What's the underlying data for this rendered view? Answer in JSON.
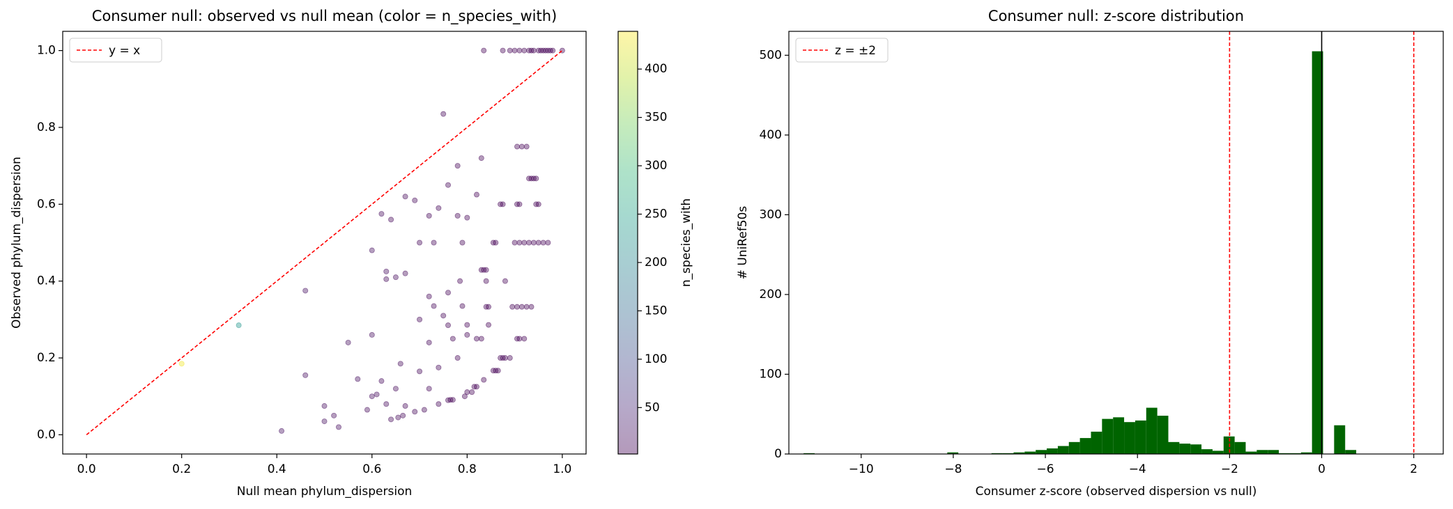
{
  "chart_data": [
    {
      "type": "scatter",
      "title": "Consumer null: observed vs null mean (color = n_species_with)",
      "x_label": "Null mean phylum_dispersion",
      "y_label": "Observed phylum_dispersion",
      "xlim": [
        -0.05,
        1.05
      ],
      "ylim": [
        -0.05,
        1.05
      ],
      "xticks": [
        {
          "value": 0,
          "label": "0.0"
        },
        0.2,
        0.4,
        0.6,
        0.8,
        {
          "value": 1,
          "label": "1.0"
        }
      ],
      "yticks": [
        {
          "value": 0,
          "label": "0.0"
        },
        0.2,
        0.4,
        0.6,
        0.8,
        {
          "value": 1,
          "label": "1.0"
        }
      ],
      "x": [
        0.835,
        0.875,
        0.89,
        0.9,
        0.91,
        0.92,
        0.93,
        0.935,
        0.94,
        0.95,
        0.955,
        0.96,
        0.965,
        0.97,
        0.975,
        0.98,
        1.0,
        0.905,
        0.915,
        0.925,
        0.93,
        0.935,
        0.94,
        0.945,
        0.82,
        0.87,
        0.875,
        0.905,
        0.91,
        0.945,
        0.95,
        0.855,
        0.86,
        0.9,
        0.91,
        0.92,
        0.93,
        0.94,
        0.95,
        0.96,
        0.97,
        0.83,
        0.835,
        0.84,
        0.785,
        0.84,
        0.88,
        0.84,
        0.845,
        0.895,
        0.905,
        0.915,
        0.925,
        0.935,
        0.8,
        0.845,
        0.82,
        0.83,
        0.905,
        0.91,
        0.92,
        0.87,
        0.875,
        0.88,
        0.89,
        0.855,
        0.86,
        0.865,
        0.835,
        0.815,
        0.82,
        0.8,
        0.81,
        0.795,
        0.765,
        0.77,
        0.75,
        0.78,
        0.83,
        0.76,
        0.67,
        0.69,
        0.72,
        0.74,
        0.78,
        0.8,
        0.62,
        0.64,
        0.7,
        0.73,
        0.79,
        0.6,
        0.63,
        0.63,
        0.65,
        0.67,
        0.46,
        0.72,
        0.73,
        0.76,
        0.79,
        0.7,
        0.75,
        0.76,
        0.6,
        0.55,
        0.72,
        0.77,
        0.8,
        0.78,
        0.66,
        0.74,
        0.7,
        0.57,
        0.62,
        0.65,
        0.72,
        0.46,
        0.6,
        0.61,
        0.59,
        0.63,
        0.67,
        0.71,
        0.74,
        0.76,
        0.5,
        0.52,
        0.5,
        0.53,
        0.41,
        0.64,
        0.655,
        0.665,
        0.69,
        0.2,
        0.32
      ],
      "y": [
        1,
        1,
        1,
        1,
        1,
        1,
        1,
        1,
        1,
        1,
        1,
        1,
        1,
        1,
        1,
        1,
        1,
        0.75,
        0.75,
        0.75,
        0.667,
        0.667,
        0.667,
        0.667,
        0.625,
        0.6,
        0.6,
        0.6,
        0.6,
        0.6,
        0.6,
        0.5,
        0.5,
        0.5,
        0.5,
        0.5,
        0.5,
        0.5,
        0.5,
        0.5,
        0.5,
        0.429,
        0.429,
        0.429,
        0.4,
        0.4,
        0.4,
        0.333,
        0.333,
        0.333,
        0.333,
        0.333,
        0.333,
        0.333,
        0.286,
        0.286,
        0.25,
        0.25,
        0.25,
        0.25,
        0.25,
        0.2,
        0.2,
        0.2,
        0.2,
        0.167,
        0.167,
        0.167,
        0.143,
        0.125,
        0.125,
        0.111,
        0.111,
        0.1,
        0.091,
        0.091,
        0.835,
        0.7,
        0.72,
        0.65,
        0.62,
        0.61,
        0.57,
        0.59,
        0.57,
        0.565,
        0.575,
        0.56,
        0.5,
        0.5,
        0.5,
        0.48,
        0.425,
        0.405,
        0.41,
        0.42,
        0.375,
        0.36,
        0.335,
        0.37,
        0.335,
        0.3,
        0.31,
        0.285,
        0.26,
        0.24,
        0.24,
        0.25,
        0.26,
        0.2,
        0.185,
        0.175,
        0.165,
        0.145,
        0.14,
        0.12,
        0.12,
        0.155,
        0.1,
        0.105,
        0.065,
        0.08,
        0.075,
        0.065,
        0.08,
        0.09,
        0.075,
        0.05,
        0.035,
        0.02,
        0.01,
        0.04,
        0.045,
        0.05,
        0.06,
        0.185,
        0.285
      ],
      "c": [
        2,
        2,
        2,
        2,
        2,
        2,
        2,
        2,
        2,
        2,
        2,
        2,
        2,
        2,
        2,
        2,
        2,
        2,
        2,
        2,
        2,
        2,
        2,
        2,
        2,
        2,
        2,
        2,
        2,
        2,
        2,
        2,
        2,
        2,
        2,
        2,
        2,
        2,
        2,
        2,
        2,
        2,
        2,
        2,
        2,
        2,
        2,
        2,
        2,
        2,
        2,
        2,
        2,
        2,
        2,
        2,
        2,
        2,
        2,
        2,
        2,
        2,
        2,
        2,
        2,
        2,
        2,
        2,
        2,
        2,
        2,
        2,
        2,
        2,
        2,
        2,
        8,
        4,
        4,
        6,
        12,
        10,
        6,
        8,
        4,
        4,
        14,
        10,
        6,
        6,
        4,
        18,
        16,
        12,
        14,
        12,
        20,
        6,
        6,
        4,
        4,
        8,
        6,
        4,
        16,
        18,
        6,
        4,
        4,
        4,
        12,
        6,
        8,
        16,
        14,
        12,
        6,
        18,
        16,
        14,
        12,
        14,
        10,
        8,
        6,
        4,
        16,
        14,
        18,
        16,
        20,
        12,
        12,
        10,
        8,
        430,
        230
      ],
      "color_label": "n_species_with",
      "colormap": "viridis",
      "clim": [
        2,
        439
      ],
      "cticks": [
        50,
        100,
        150,
        200,
        250,
        300,
        350,
        400
      ],
      "ref_line": {
        "label": "y = x",
        "x": [
          0,
          1
        ],
        "y": [
          0,
          1
        ],
        "color": "#ff0000"
      },
      "legend": "upper left"
    },
    {
      "type": "histogram",
      "title": "Consumer null: z-score distribution",
      "x_label": "Consumer z-score (observed dispersion vs null)",
      "y_label": "# UniRef50s",
      "color": "#006400",
      "xlim": [
        -11.57,
        2.64
      ],
      "ylim": [
        0,
        530
      ],
      "xticks": [
        {
          "value": -10,
          "label": "−10"
        },
        {
          "value": -8,
          "label": "−8"
        },
        {
          "value": -6,
          "label": "−6"
        },
        {
          "value": -4,
          "label": "−4"
        },
        {
          "value": -2,
          "label": "−2"
        },
        0,
        2
      ],
      "yticks": [
        0,
        100,
        200,
        300,
        400,
        500
      ],
      "bins": [
        -11.25,
        -11.01,
        -10.77,
        -10.53,
        -10.29,
        -10.05,
        -9.81,
        -9.57,
        -9.33,
        -9.09,
        -8.85,
        -8.61,
        -8.37,
        -8.13,
        -7.89,
        -7.65,
        -7.41,
        -7.17,
        -6.93,
        -6.69,
        -6.45,
        -6.21,
        -5.97,
        -5.73,
        -5.49,
        -5.25,
        -5.01,
        -4.77,
        -4.53,
        -4.29,
        -4.05,
        -3.81,
        -3.57,
        -3.33,
        -3.09,
        -2.85,
        -2.61,
        -2.37,
        -2.13,
        -1.89,
        -1.65,
        -1.41,
        -1.17,
        -0.93,
        -0.69,
        -0.45,
        -0.21,
        0.03,
        0.27,
        0.51,
        0.75
      ],
      "values": [
        1,
        0,
        0,
        0,
        0,
        0,
        0,
        0,
        0,
        0,
        0,
        0,
        0,
        2,
        0,
        0,
        0,
        1,
        1,
        2,
        3,
        5,
        7,
        10,
        15,
        20,
        28,
        44,
        46,
        40,
        42,
        58,
        48,
        15,
        13,
        12,
        6,
        4,
        22,
        15,
        3,
        5,
        5,
        1,
        1,
        2,
        505,
        0,
        36,
        5
      ],
      "threshold_lines": {
        "label": "z = ±2",
        "x": [
          -2,
          2
        ],
        "color": "#ff0000"
      },
      "zero_line": {
        "x": 0,
        "color": "#000000"
      },
      "legend": "upper left"
    }
  ]
}
